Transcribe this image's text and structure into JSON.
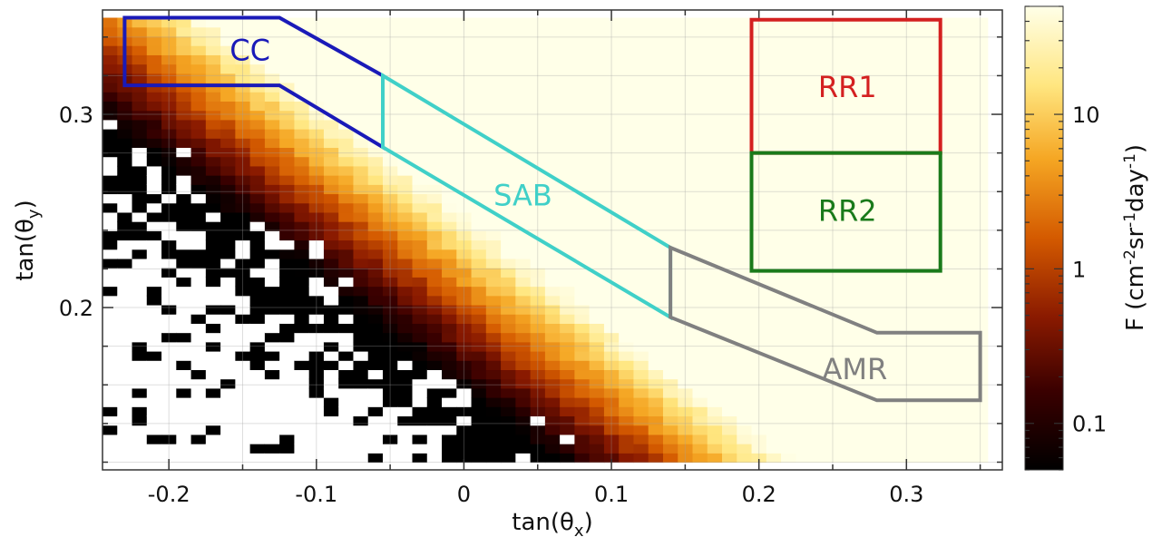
{
  "chart_data": {
    "type": "heatmap",
    "xlabel": {
      "base": "tan(θ",
      "sub": "x",
      "close": ")"
    },
    "ylabel": {
      "base": "tan(θ",
      "sub": "y",
      "close": ")"
    },
    "xlim": [
      -0.245,
      0.365
    ],
    "ylim": [
      0.116,
      0.354
    ],
    "x_ticks": [
      {
        "value": -0.2,
        "label": "-0.2"
      },
      {
        "value": -0.1,
        "label": "-0.1"
      },
      {
        "value": 0,
        "label": "0"
      },
      {
        "value": 0.1,
        "label": "0.1"
      },
      {
        "value": 0.2,
        "label": "0.2"
      },
      {
        "value": 0.3,
        "label": "0.3"
      }
    ],
    "y_ticks": [
      {
        "value": 0.2,
        "label": "0.2"
      },
      {
        "value": 0.3,
        "label": "0.3"
      }
    ],
    "heatmap": {
      "x_bins": 60,
      "y_bins": 48,
      "x_range": [
        -0.245,
        0.355
      ],
      "y_range": [
        0.12,
        0.35
      ],
      "colormap": [
        "#000000",
        "#3a0000",
        "#8a1a00",
        "#d45a00",
        "#f5a623",
        "#ffe680",
        "#ffffe8"
      ],
      "ridge": {
        "x0": -0.23,
        "y0": 0.345,
        "slope": -0.58
      },
      "empty_color": "#ffffff"
    },
    "colorbar": {
      "scale": "log",
      "range": [
        0.05,
        50
      ],
      "ticks": [
        {
          "value": 0.1,
          "label": "0.1"
        },
        {
          "value": 1,
          "label": "1"
        },
        {
          "value": 10,
          "label": "10"
        }
      ],
      "label": {
        "pre": "F (cm",
        "sup1": "-2",
        "mid1": "sr",
        "sup2": "-1",
        "mid2": "day",
        "sup3": "-1",
        "post": ")"
      }
    },
    "regions": [
      {
        "name": "CC",
        "color": "#1a1ab8",
        "points": [
          [
            -0.23,
            0.35
          ],
          [
            -0.125,
            0.35
          ],
          [
            -0.055,
            0.32
          ],
          [
            -0.055,
            0.283
          ],
          [
            -0.125,
            0.315
          ],
          [
            -0.23,
            0.315
          ]
        ],
        "label_at": [
          -0.145,
          0.333
        ]
      },
      {
        "name": "SAB",
        "color": "#40d0c8",
        "points": [
          [
            -0.055,
            0.32
          ],
          [
            0.14,
            0.231
          ],
          [
            0.14,
            0.195
          ],
          [
            -0.055,
            0.283
          ]
        ],
        "label_at": [
          0.04,
          0.258
        ]
      },
      {
        "name": "AMR",
        "color": "#808080",
        "points": [
          [
            0.14,
            0.231
          ],
          [
            0.28,
            0.187
          ],
          [
            0.35,
            0.187
          ],
          [
            0.35,
            0.152
          ],
          [
            0.28,
            0.152
          ],
          [
            0.14,
            0.195
          ]
        ],
        "label_at": [
          0.265,
          0.168
        ]
      },
      {
        "name": "RR1",
        "color": "#d42020",
        "points": [
          [
            0.195,
            0.349
          ],
          [
            0.323,
            0.349
          ],
          [
            0.323,
            0.28
          ],
          [
            0.195,
            0.28
          ]
        ],
        "label_at": [
          0.26,
          0.314
        ]
      },
      {
        "name": "RR2",
        "color": "#1a7a1a",
        "points": [
          [
            0.195,
            0.28
          ],
          [
            0.323,
            0.28
          ],
          [
            0.323,
            0.219
          ],
          [
            0.195,
            0.219
          ]
        ],
        "label_at": [
          0.26,
          0.25
        ]
      }
    ]
  }
}
